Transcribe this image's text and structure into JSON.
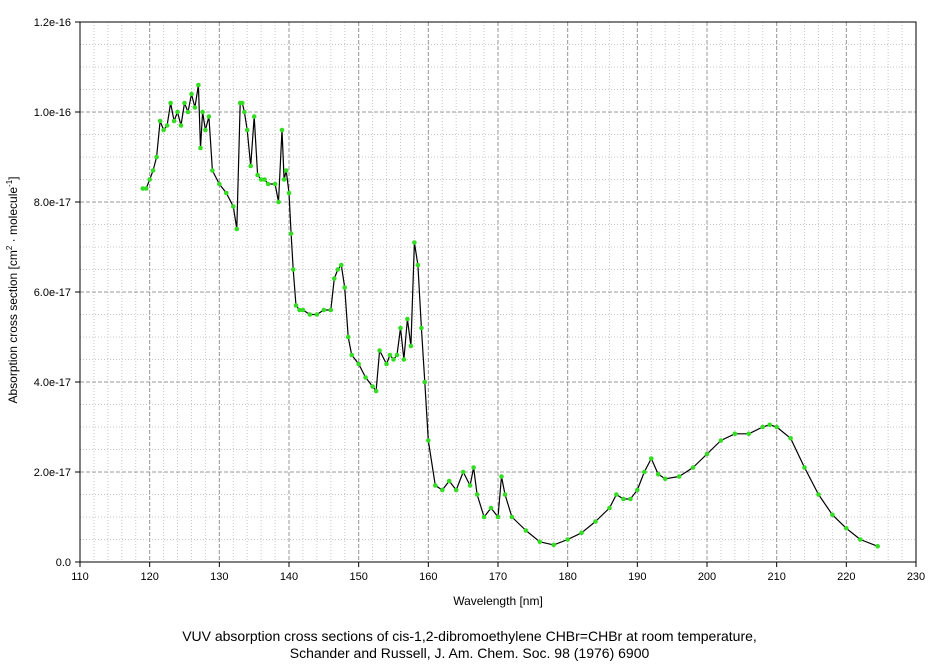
{
  "chart_data": {
    "type": "line",
    "xlabel": "Wavelength [nm]",
    "ylabel_parts": {
      "prefix": "Absorption cross section [cm",
      "exp1": "2",
      "middle": " · molecule",
      "exp2": "-1",
      "suffix": "]"
    },
    "x_ticks": [
      "110",
      "120",
      "130",
      "140",
      "150",
      "160",
      "170",
      "180",
      "190",
      "200",
      "210",
      "220",
      "230"
    ],
    "y_ticks": [
      "0.0",
      "2.0e-17",
      "4.0e-17",
      "6.0e-17",
      "8.0e-17",
      "1.0e-16",
      "1.2e-16"
    ],
    "xlim": [
      110,
      230
    ],
    "ylim": [
      0,
      1.2e-16
    ],
    "grid": true,
    "series": [
      {
        "color": "#000000",
        "marker_color": "#33dd22",
        "x": [
          119.0,
          119.5,
          120.0,
          120.5,
          121.0,
          121.5,
          122.0,
          122.5,
          123.0,
          123.5,
          124.0,
          124.5,
          125.0,
          125.5,
          126.0,
          126.5,
          127.0,
          127.3,
          127.6,
          128.0,
          128.5,
          129.0,
          130.0,
          131.0,
          132.0,
          132.5,
          133.0,
          133.3,
          133.6,
          134.0,
          134.5,
          135.0,
          135.5,
          136.0,
          136.5,
          137.0,
          138.0,
          138.5,
          139.0,
          139.3,
          139.6,
          140.0,
          140.3,
          140.6,
          141.0,
          141.5,
          142.0,
          143.0,
          144.0,
          145.0,
          146.0,
          146.5,
          147.0,
          147.5,
          148.0,
          148.5,
          149.0,
          150.0,
          151.0,
          152.0,
          152.5,
          153.0,
          154.0,
          154.5,
          155.0,
          155.5,
          156.0,
          156.5,
          157.0,
          157.5,
          158.0,
          158.5,
          159.0,
          159.5,
          160.0,
          161.0,
          162.0,
          163.0,
          164.0,
          165.0,
          166.0,
          166.5,
          167.0,
          168.0,
          169.0,
          170.0,
          170.5,
          171.0,
          172.0,
          174.0,
          176.0,
          178.0,
          180.0,
          182.0,
          184.0,
          186.0,
          187.0,
          188.0,
          189.0,
          190.0,
          191.0,
          192.0,
          193.0,
          194.0,
          196.0,
          198.0,
          200.0,
          202.0,
          204.0,
          206.0,
          208.0,
          209.0,
          210.0,
          212.0,
          214.0,
          216.0,
          218.0,
          220.0,
          222.0,
          224.5
        ],
        "y": [
          8.3e-17,
          8.3e-17,
          8.5e-17,
          8.7e-17,
          9e-17,
          9.8e-17,
          9.6e-17,
          9.7e-17,
          1.02e-16,
          9.8e-17,
          1e-16,
          9.7e-17,
          1.02e-16,
          1e-16,
          1.04e-16,
          1.01e-16,
          1.06e-16,
          9.2e-17,
          1e-16,
          9.6e-17,
          9.9e-17,
          8.7e-17,
          8.4e-17,
          8.2e-17,
          7.9e-17,
          7.4e-17,
          1.02e-16,
          1.02e-16,
          1e-16,
          9.6e-17,
          8.8e-17,
          9.9e-17,
          8.6e-17,
          8.5e-17,
          8.5e-17,
          8.4e-17,
          8.4e-17,
          8e-17,
          9.6e-17,
          8.5e-17,
          8.7e-17,
          8.2e-17,
          7.3e-17,
          6.5e-17,
          5.7e-17,
          5.6e-17,
          5.6e-17,
          5.5e-17,
          5.5e-17,
          5.6e-17,
          5.6e-17,
          6.3e-17,
          6.5e-17,
          6.6e-17,
          6.1e-17,
          5e-17,
          4.6e-17,
          4.4e-17,
          4.1e-17,
          3.9e-17,
          3.8e-17,
          4.7e-17,
          4.4e-17,
          4.6e-17,
          4.5e-17,
          4.6e-17,
          5.2e-17,
          4.5e-17,
          5.4e-17,
          4.8e-17,
          7.1e-17,
          6.6e-17,
          5.2e-17,
          4e-17,
          2.7e-17,
          1.7e-17,
          1.6e-17,
          1.8e-17,
          1.6e-17,
          2e-17,
          1.7e-17,
          2.1e-17,
          1.5e-17,
          1e-17,
          1.2e-17,
          1e-17,
          1.9e-17,
          1.5e-17,
          1e-17,
          7e-18,
          4.5e-18,
          3.8e-18,
          5e-18,
          6.5e-18,
          9e-18,
          1.2e-17,
          1.5e-17,
          1.4e-17,
          1.4e-17,
          1.6e-17,
          2e-17,
          2.3e-17,
          1.95e-17,
          1.85e-17,
          1.9e-17,
          2.1e-17,
          2.4e-17,
          2.7e-17,
          2.85e-17,
          2.85e-17,
          3e-17,
          3.05e-17,
          3e-17,
          2.75e-17,
          2.1e-17,
          1.5e-17,
          1.05e-17,
          7.5e-18,
          5e-18,
          3.5e-18
        ]
      }
    ]
  },
  "caption": {
    "line1": "VUV absorption cross sections of cis-1,2-dibromoethylene CHBr=CHBr at room temperature,",
    "line2": "Schander and Russell, J. Am. Chem. Soc. 98 (1976) 6900"
  }
}
